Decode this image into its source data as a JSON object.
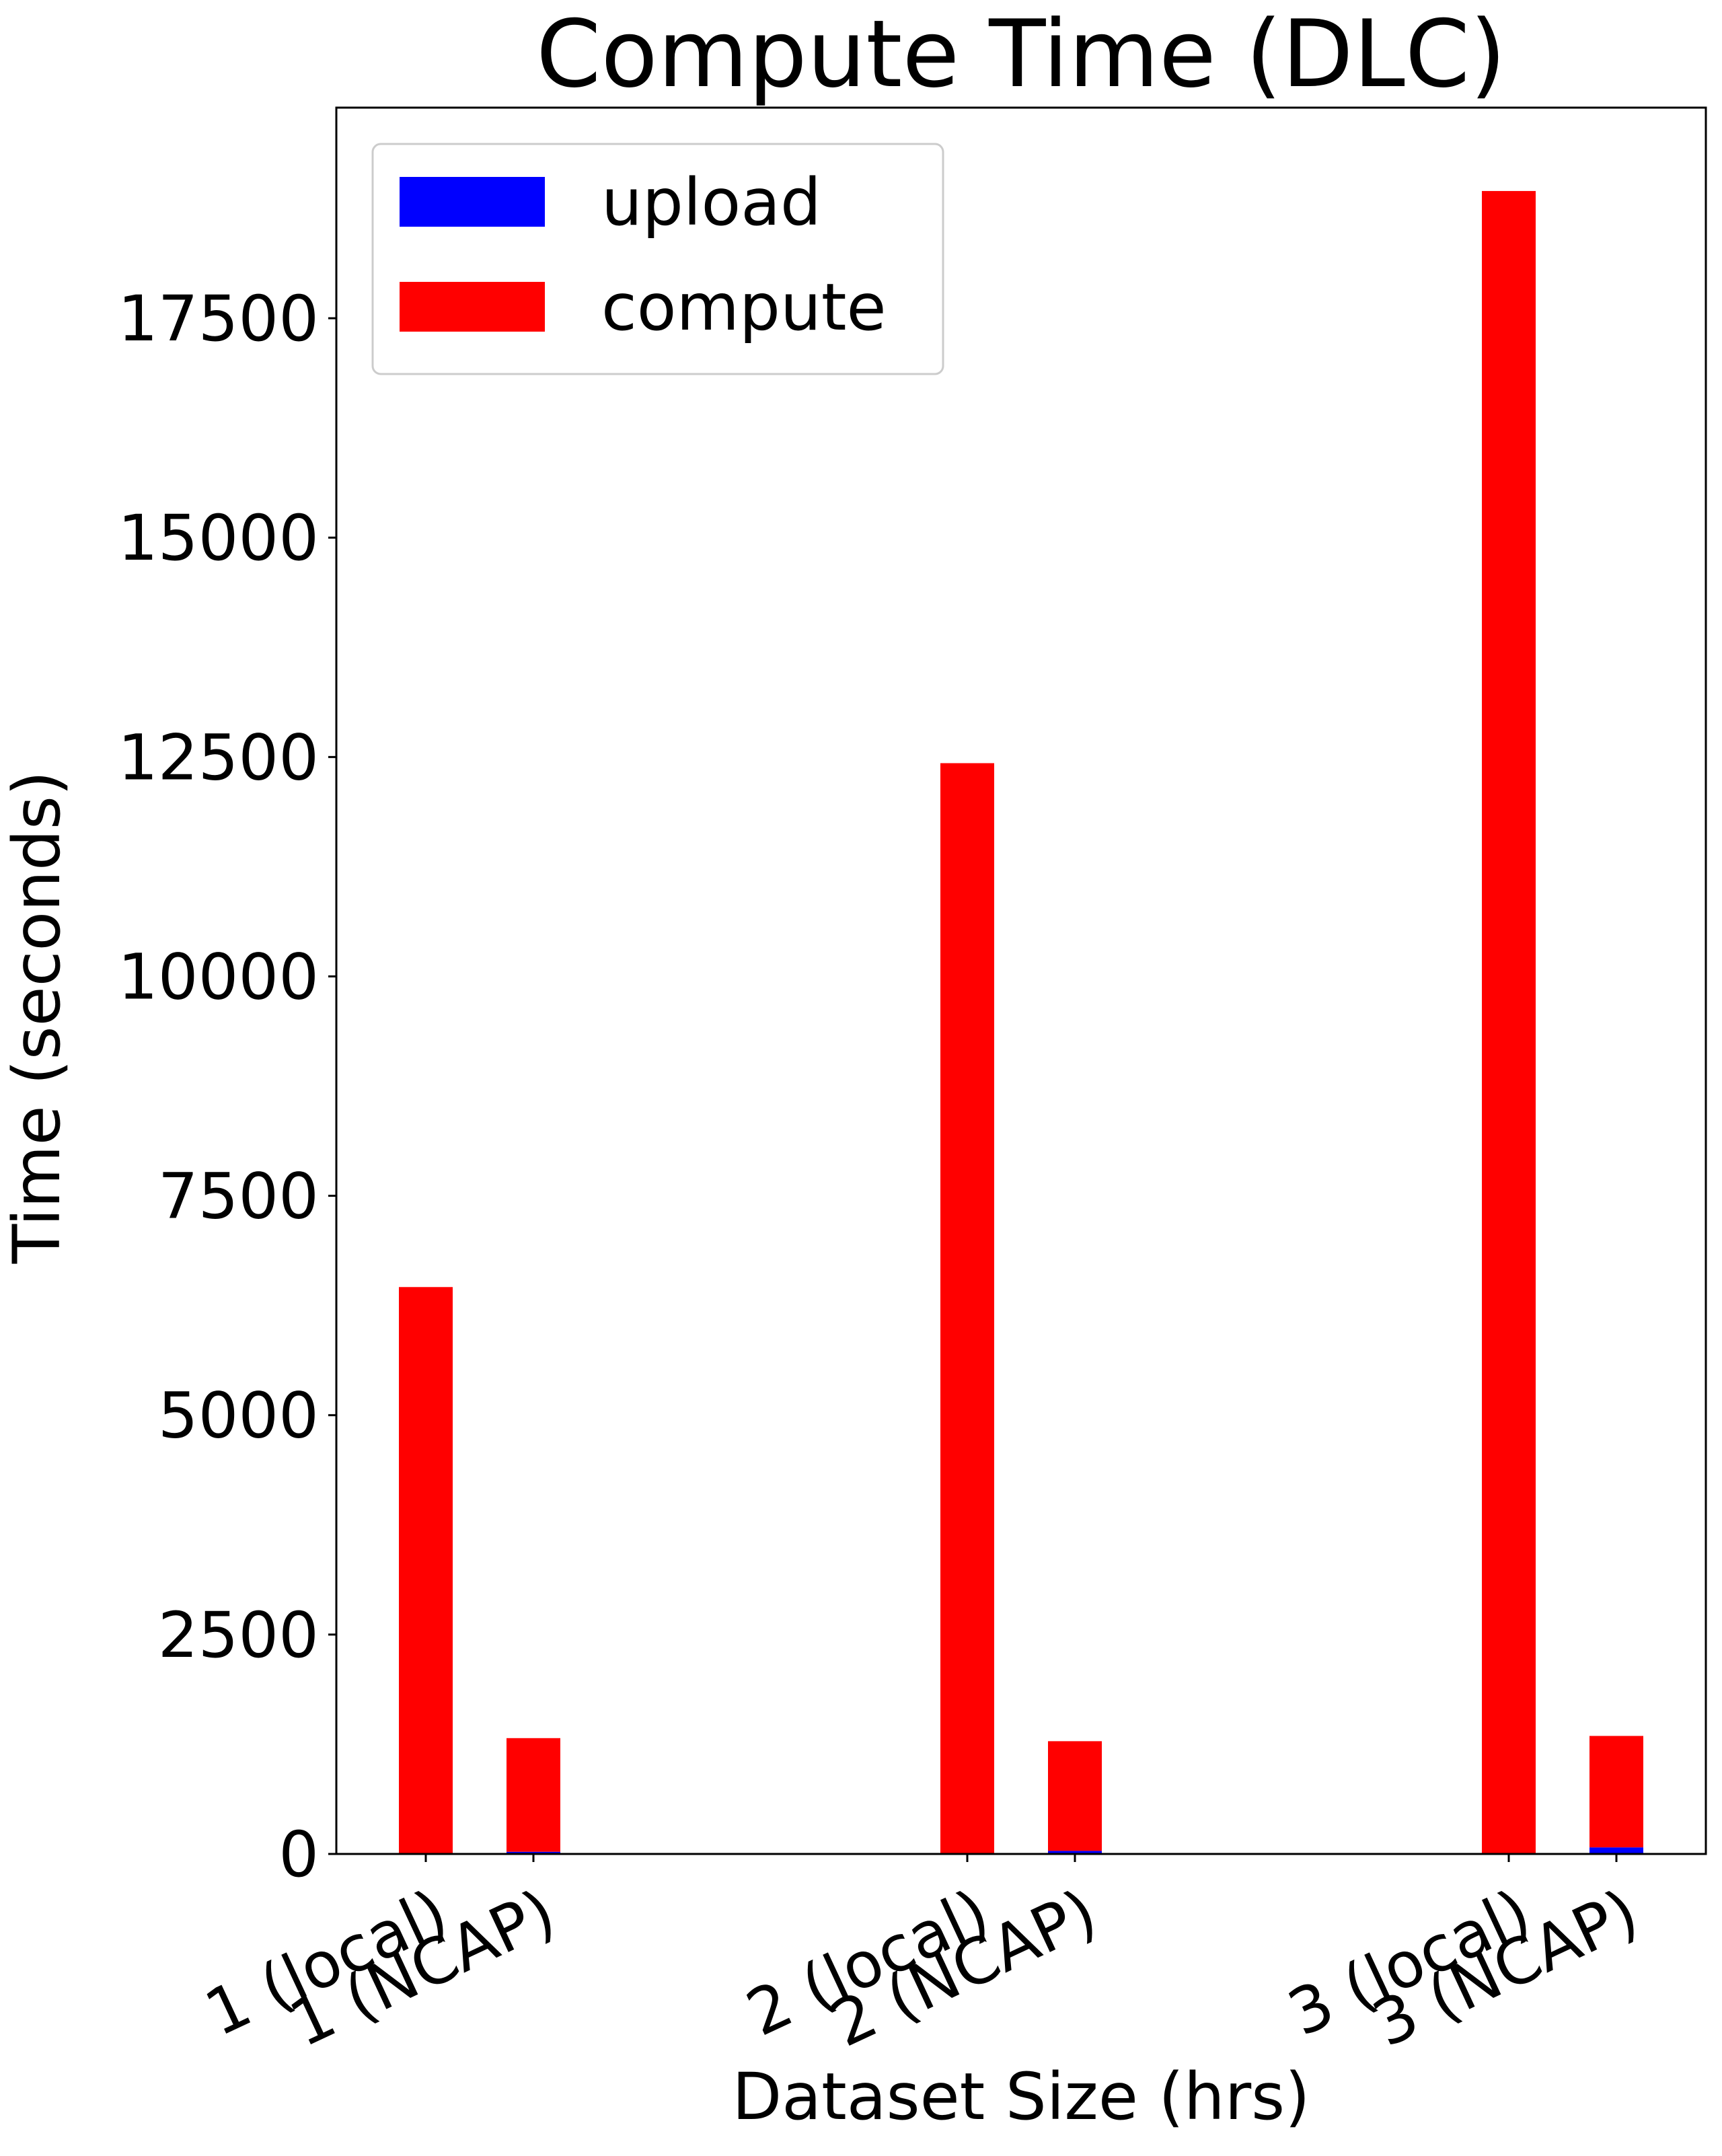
{
  "chart_data": {
    "type": "bar",
    "stacked": true,
    "title": "Compute Time (DLC)",
    "xlabel": "Dataset Size (hrs)",
    "ylabel": "Time (seconds)",
    "ylim": [
      0,
      19900
    ],
    "yticks": [
      0,
      2500,
      5000,
      7500,
      10000,
      12500,
      15000,
      17500
    ],
    "grid": false,
    "legend_position": "top-left",
    "categories": [
      "1 (local)",
      "1 (NCAP)",
      "2 (local)",
      "2 (NCAP)",
      "3 (local)",
      "3 (NCAP)"
    ],
    "series": [
      {
        "name": "upload",
        "color": "#0000ff",
        "values": [
          0,
          25,
          0,
          35,
          0,
          75
        ]
      },
      {
        "name": "compute",
        "color": "#ff0000",
        "values": [
          6460,
          1295,
          12430,
          1250,
          18950,
          1270
        ]
      }
    ]
  }
}
